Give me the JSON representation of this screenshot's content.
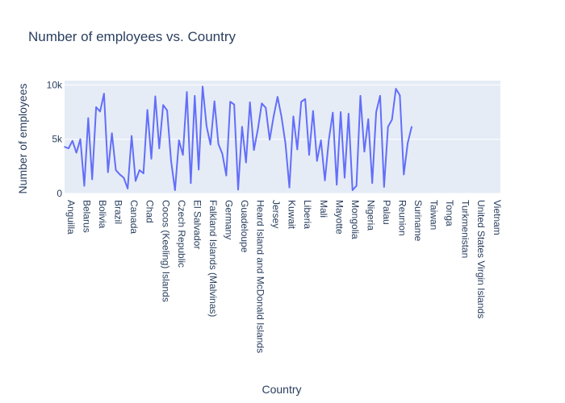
{
  "chart_data": {
    "type": "line",
    "title": "Number of employees vs. Country",
    "xlabel": "Country",
    "ylabel": "Number of employees",
    "ylim": [
      0,
      10400
    ],
    "y_ticks": [
      {
        "value": 0,
        "label": "0"
      },
      {
        "value": 5000,
        "label": "5k"
      },
      {
        "value": 10000,
        "label": "10k"
      }
    ],
    "x_tick_labels": [
      "Anguilla",
      "Belarus",
      "Bolivia",
      "Brazil",
      "Canada",
      "Chad",
      "Cocos (Keeling) Islands",
      "Czech Republic",
      "El Salvador",
      "Falkland Islands (Malvinas)",
      "Germany",
      "Guadeloupe",
      "Heard Island and McDonald Islands",
      "Jersey",
      "Kuwait",
      "Liberia",
      "Mali",
      "Mayotte",
      "Mongolia",
      "Nigeria",
      "Palau",
      "Reunion",
      "Suriname",
      "Taiwan",
      "Tonga",
      "Turkmenistan",
      "United States Virgin Islands",
      "Vietnam"
    ],
    "x_tick_positions": [
      0,
      4,
      8,
      12,
      16,
      20,
      24,
      28,
      32,
      36,
      40,
      44,
      48,
      52,
      56,
      60,
      64,
      68,
      72,
      76,
      80,
      84,
      88,
      92,
      96,
      100,
      104,
      108
    ],
    "x_range": [
      0,
      110.5
    ],
    "line_color": "#636efa",
    "series": [
      {
        "name": "Number of employees",
        "values": [
          4300,
          4150,
          4850,
          3750,
          5000,
          700,
          6950,
          1300,
          7950,
          7550,
          9200,
          1950,
          5550,
          2150,
          1750,
          1450,
          450,
          5300,
          1150,
          2150,
          1850,
          7700,
          3200,
          8950,
          4150,
          8150,
          7650,
          3000,
          300,
          4900,
          3550,
          9350,
          950,
          9000,
          2200,
          9850,
          6200,
          4500,
          8500,
          4550,
          3650,
          1650,
          8450,
          8200,
          350,
          6150,
          2850,
          8400,
          4000,
          5900,
          8300,
          7900,
          4950,
          7100,
          8900,
          7050,
          4600,
          550,
          7100,
          4050,
          8450,
          8700,
          3550,
          7600,
          3000,
          4900,
          1200,
          4950,
          7450,
          800,
          7500,
          1450,
          7350,
          300,
          700,
          9000,
          3850,
          6850,
          950,
          7500,
          9000,
          600,
          6150,
          6800,
          9650,
          9050,
          1750,
          4650,
          6150
        ]
      }
    ]
  }
}
